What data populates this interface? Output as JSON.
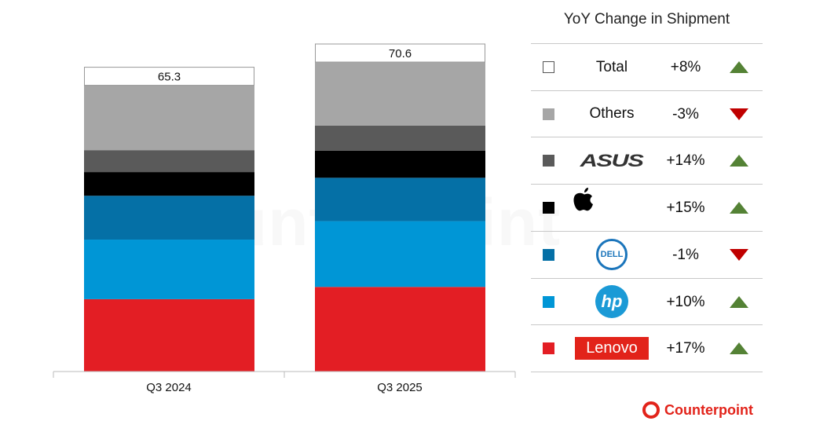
{
  "chart_data": {
    "type": "bar",
    "stacked": true,
    "categories": [
      "Q3 2024",
      "Q3 2025"
    ],
    "totals": [
      65.3,
      70.6
    ],
    "series": [
      {
        "name": "Lenovo",
        "values": [
          16.5,
          19.3
        ],
        "color": "#e31e24"
      },
      {
        "name": "HP",
        "values": [
          13.6,
          15.0
        ],
        "color": "#0096d6"
      },
      {
        "name": "Dell",
        "values": [
          10.0,
          9.9
        ],
        "color": "#0570a6"
      },
      {
        "name": "Apple",
        "values": [
          5.4,
          6.2
        ],
        "color": "#000000"
      },
      {
        "name": "ASUS",
        "values": [
          5.0,
          5.7
        ],
        "color": "#5a5a5a"
      },
      {
        "name": "Others",
        "values": [
          14.8,
          14.5
        ],
        "color": "#a6a6a6"
      }
    ],
    "ylim": [
      0,
      70.6
    ],
    "grid": false
  },
  "table": {
    "title": "YoY Change in Shipment",
    "rows": [
      {
        "label": "Total",
        "change": "+8%",
        "direction": "up",
        "color": "#ffffff"
      },
      {
        "label": "Others",
        "change": "-3%",
        "direction": "down",
        "color": "#a6a6a6"
      },
      {
        "label": "ASUS",
        "change": "+14%",
        "direction": "up",
        "color": "#5a5a5a"
      },
      {
        "label": "Apple",
        "change": "+15%",
        "direction": "up",
        "color": "#000000"
      },
      {
        "label": "DELL",
        "change": "-1%",
        "direction": "down",
        "color": "#0570a6"
      },
      {
        "label": "hp",
        "change": "+10%",
        "direction": "up",
        "color": "#0096d6"
      },
      {
        "label": "Lenovo",
        "change": "+17%",
        "direction": "up",
        "color": "#e31e24"
      }
    ]
  },
  "brand": "Counterpoint"
}
